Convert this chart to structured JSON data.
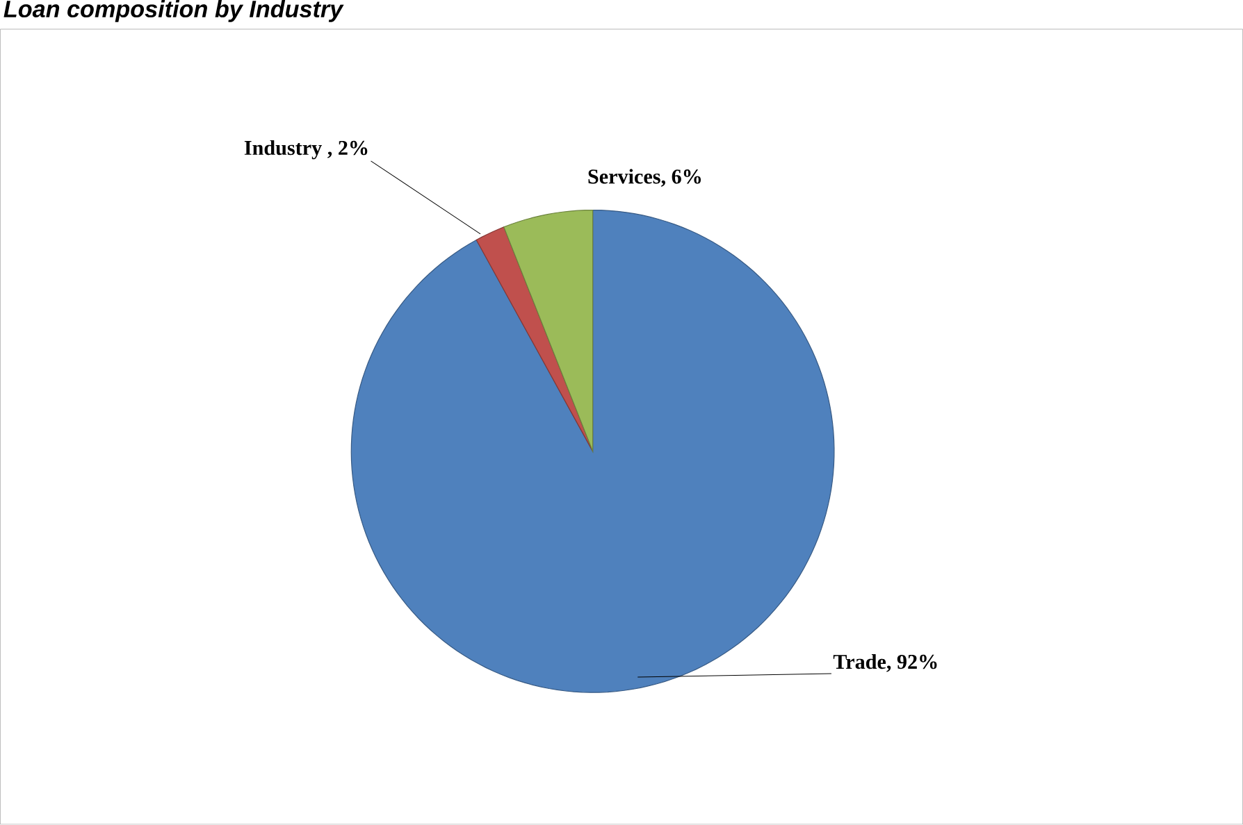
{
  "chart_data": {
    "type": "pie",
    "title": "Loan composition by Industry",
    "categories": [
      "Trade",
      "Industry ",
      "Services"
    ],
    "values": [
      92,
      2,
      6
    ],
    "value_labels": [
      ", 92%",
      ", 2%",
      ", 6%"
    ],
    "colors": [
      "#4f81bd",
      "#c0504d",
      "#9bbb59"
    ]
  }
}
